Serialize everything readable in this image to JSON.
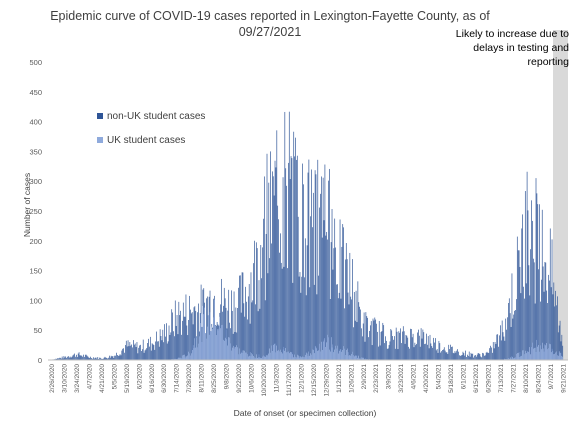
{
  "chart_data": {
    "type": "bar",
    "title": "Epidemic curve of COVID-19 cases reported in Lexington-Fayette County, as of 09/27/2021",
    "xlabel": "Date of onset (or specimen collection)",
    "ylabel": "Number of cases",
    "ylim": [
      0,
      500
    ],
    "yticks": [
      0,
      50,
      100,
      150,
      200,
      250,
      300,
      350,
      400,
      450,
      500
    ],
    "stacked": true,
    "x_tick_labels": [
      "2/26/2020",
      "3/10/2020",
      "3/24/2020",
      "4/7/2020",
      "4/21/2020",
      "5/5/2020",
      "5/19/2020",
      "6/2/2020",
      "6/16/2020",
      "6/30/2020",
      "7/14/2020",
      "7/28/2020",
      "8/11/2020",
      "8/25/2020",
      "9/8/2020",
      "9/22/2020",
      "10/6/2020",
      "10/20/2020",
      "11/3/2020",
      "11/17/2020",
      "12/1/2020",
      "12/15/2020",
      "12/29/2020",
      "1/12/2021",
      "1/26/2021",
      "2/9/2021",
      "2/23/2021",
      "3/9/2021",
      "3/23/2021",
      "4/6/2021",
      "4/20/2021",
      "5/4/2021",
      "5/18/2021",
      "6/1/2021",
      "6/15/2021",
      "6/29/2021",
      "7/13/2021",
      "7/27/2021",
      "8/10/2021",
      "8/24/2021",
      "9/7/2021",
      "9/21/2021"
    ],
    "series": [
      {
        "name": "non-UK student cases",
        "color": "#2F5597",
        "values_total_by_tick": [
          1,
          5,
          10,
          5,
          3,
          8,
          25,
          22,
          30,
          45,
          75,
          85,
          90,
          110,
          95,
          100,
          140,
          210,
          290,
          300,
          245,
          230,
          240,
          170,
          130,
          60,
          50,
          38,
          40,
          42,
          38,
          25,
          18,
          12,
          8,
          12,
          45,
          120,
          215,
          200,
          150,
          20
        ]
      },
      {
        "name": "UK student cases",
        "color": "#8FAADC",
        "values_by_tick": [
          0,
          0,
          0,
          0,
          0,
          0,
          0,
          0,
          0,
          0,
          2,
          10,
          60,
          70,
          35,
          15,
          8,
          5,
          25,
          10,
          5,
          15,
          30,
          20,
          10,
          2,
          0,
          0,
          0,
          0,
          0,
          0,
          0,
          0,
          0,
          0,
          0,
          5,
          15,
          25,
          20,
          5
        ]
      }
    ],
    "legend": {
      "position": "top-left",
      "entries": [
        "non-UK student cases",
        "UK student cases"
      ]
    },
    "shaded_region": {
      "from": "9/14/2021",
      "to": "9/27/2021",
      "color": "#d9d9d9"
    },
    "annotation": "Likely to increase due to delays in testing and reporting",
    "grid": false
  }
}
